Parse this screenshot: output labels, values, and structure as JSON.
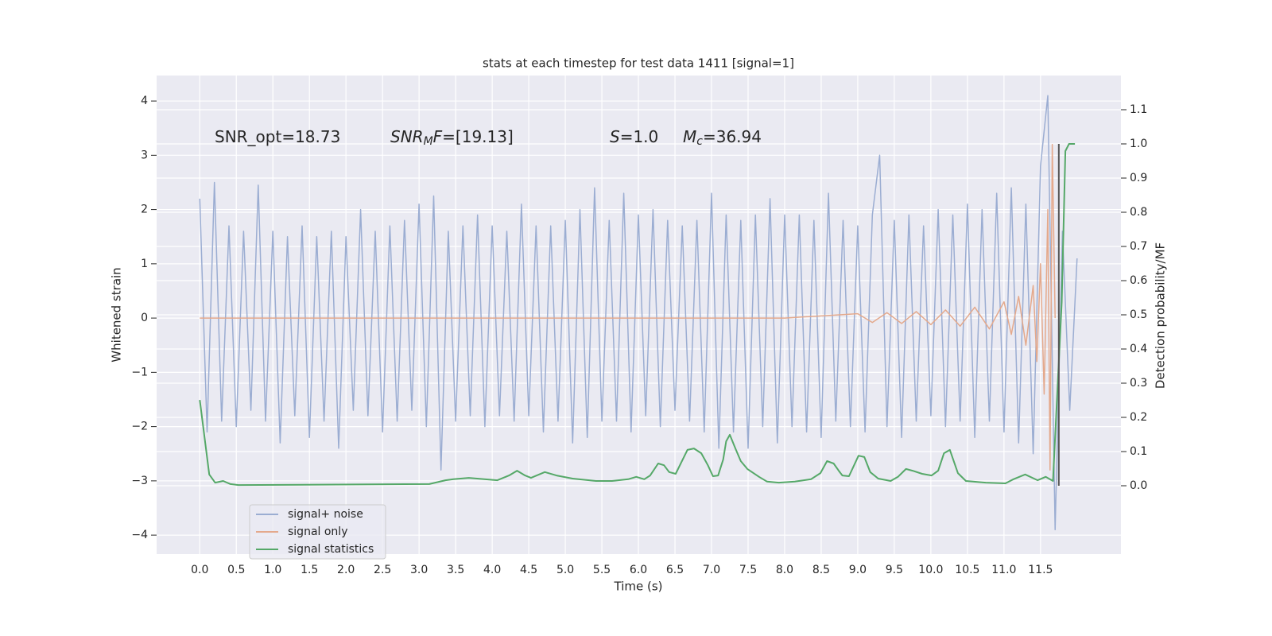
{
  "chart_data": {
    "type": "line",
    "title": "stats at each timestep for test data 1411 [signal=1]",
    "xlabel": "Time (s)",
    "ylabel": "Whitened strain",
    "y2label": "Detection probability/MF",
    "annotations": [
      {
        "parts": [
          "SNR_opt=18.73"
        ]
      },
      {
        "parts": [
          "SNR",
          "M",
          "F",
          "=[19.13]"
        ]
      },
      {
        "parts": [
          "S",
          "=1.0"
        ]
      },
      {
        "parts": [
          "M",
          "c",
          "=36.94"
        ]
      }
    ],
    "xlim": [
      -0.59,
      12.6
    ],
    "ylim": [
      -4.35,
      4.47
    ],
    "y2lim": [
      -0.2,
      1.2
    ],
    "xticks": [
      {
        "value": 0,
        "label": "0.0"
      },
      0.5,
      {
        "value": 1,
        "label": "1.0"
      },
      1.5,
      {
        "value": 2,
        "label": "2.0"
      },
      2.5,
      {
        "value": 3,
        "label": "3.0"
      },
      3.5,
      {
        "value": 4,
        "label": "4.0"
      },
      4.5,
      {
        "value": 5,
        "label": "5.0"
      },
      5.5,
      {
        "value": 6,
        "label": "6.0"
      },
      6.5,
      {
        "value": 7,
        "label": "7.0"
      },
      7.5,
      {
        "value": 8,
        "label": "8.0"
      },
      8.5,
      {
        "value": 9,
        "label": "9.0"
      },
      9.5,
      {
        "value": 10,
        "label": "10.0"
      },
      10.5,
      {
        "value": 11,
        "label": "11.0"
      },
      11.5
    ],
    "yticks": [
      {
        "value": -4,
        "label": "−4"
      },
      {
        "value": -3,
        "label": "−3"
      },
      {
        "value": -2,
        "label": "−2"
      },
      {
        "value": -1,
        "label": "−1"
      },
      0,
      1,
      2,
      3,
      4
    ],
    "y2ticks": [
      {
        "value": 0,
        "label": "0.0"
      },
      0.1,
      0.2,
      0.3,
      0.4,
      0.5,
      0.6,
      0.7,
      0.8,
      0.9,
      {
        "value": 1,
        "label": "1.0"
      },
      1.1
    ],
    "grid": true,
    "legend": "lower left",
    "series": [
      {
        "name": "signal+ noise",
        "color": "#9badd2",
        "x": [
          0.0,
          0.1,
          0.2,
          0.3,
          0.4,
          0.5,
          0.6,
          0.7,
          0.8,
          0.9,
          1.0,
          1.1,
          1.2,
          1.3,
          1.4,
          1.5,
          1.6,
          1.7,
          1.8,
          1.9,
          2.0,
          2.1,
          2.2,
          2.3,
          2.4,
          2.5,
          2.6,
          2.7,
          2.8,
          2.9,
          3.0,
          3.1,
          3.2,
          3.3,
          3.4,
          3.5,
          3.6,
          3.7,
          3.8,
          3.9,
          4.0,
          4.1,
          4.2,
          4.3,
          4.4,
          4.5,
          4.6,
          4.7,
          4.8,
          4.9,
          5.0,
          5.1,
          5.2,
          5.3,
          5.4,
          5.5,
          5.6,
          5.7,
          5.8,
          5.9,
          6.0,
          6.1,
          6.2,
          6.3,
          6.4,
          6.5,
          6.6,
          6.7,
          6.8,
          6.9,
          7.0,
          7.1,
          7.2,
          7.3,
          7.4,
          7.5,
          7.6,
          7.7,
          7.8,
          7.9,
          8.0,
          8.1,
          8.2,
          8.3,
          8.4,
          8.5,
          8.6,
          8.7,
          8.8,
          8.9,
          9.0,
          9.1,
          9.2,
          9.3,
          9.4,
          9.5,
          9.6,
          9.7,
          9.8,
          9.9,
          10.0,
          10.1,
          10.2,
          10.3,
          10.4,
          10.5,
          10.6,
          10.7,
          10.8,
          10.9,
          11.0,
          11.1,
          11.2,
          11.3,
          11.4,
          11.5,
          11.6,
          11.7,
          11.8,
          11.9,
          12.0
        ],
        "values": [
          2.2,
          -2.1,
          2.5,
          -1.9,
          1.7,
          -2.0,
          1.6,
          -1.7,
          2.45,
          -1.9,
          1.6,
          -2.3,
          1.5,
          -1.8,
          1.7,
          -2.2,
          1.5,
          -1.9,
          1.6,
          -2.4,
          1.5,
          -1.7,
          2.0,
          -1.8,
          1.6,
          -2.1,
          1.7,
          -1.9,
          1.8,
          -1.7,
          2.1,
          -2.0,
          2.25,
          -2.8,
          1.6,
          -1.9,
          1.7,
          -1.8,
          1.9,
          -2.0,
          1.7,
          -1.8,
          1.6,
          -1.9,
          2.1,
          -1.8,
          1.7,
          -2.1,
          1.7,
          -1.9,
          1.8,
          -2.3,
          2.0,
          -2.2,
          2.4,
          -1.9,
          1.8,
          -1.9,
          2.3,
          -2.1,
          1.9,
          -1.8,
          2.0,
          -2.0,
          1.8,
          -1.7,
          1.7,
          -1.9,
          1.8,
          -2.1,
          2.3,
          -2.4,
          1.9,
          -2.1,
          1.8,
          -2.4,
          1.9,
          -2.0,
          2.2,
          -2.3,
          1.9,
          -2.0,
          1.9,
          -2.1,
          1.8,
          -2.2,
          2.3,
          -1.9,
          1.8,
          -2.0,
          1.7,
          -2.1,
          1.9,
          3.0,
          -2.0,
          1.8,
          -2.2,
          1.9,
          -1.9,
          1.7,
          -1.8,
          2.0,
          -2.0,
          1.9,
          -1.9,
          2.1,
          -2.2,
          2.0,
          -1.9,
          2.3,
          -2.1,
          2.4,
          -2.3,
          2.1,
          -2.5,
          2.8,
          4.1,
          -3.9,
          1.6,
          -1.7,
          1.1
        ]
      },
      {
        "name": "signal only",
        "color": "#e4a98c",
        "x": [
          0,
          2,
          4,
          6,
          8,
          9.0,
          9.2,
          9.4,
          9.6,
          9.8,
          10.0,
          10.2,
          10.4,
          10.6,
          10.8,
          11.0,
          11.1,
          11.2,
          11.3,
          11.4,
          11.45,
          11.5,
          11.55,
          11.6,
          11.63,
          11.66,
          11.7
        ],
        "values": [
          0,
          0,
          0,
          0,
          0,
          0.08,
          -0.08,
          0.1,
          -0.1,
          0.12,
          -0.12,
          0.15,
          -0.15,
          0.2,
          -0.2,
          0.3,
          -0.3,
          0.4,
          -0.5,
          0.6,
          -0.8,
          1.0,
          -1.4,
          2.0,
          -2.8,
          3.2,
          0
        ]
      },
      {
        "name": "signal statistics",
        "color": "#55a868",
        "axis": "y2",
        "x": [
          0.0,
          0.13,
          0.21,
          0.32,
          0.42,
          0.53,
          3.14,
          3.36,
          3.47,
          3.68,
          4.07,
          4.23,
          4.34,
          4.45,
          4.53,
          4.72,
          4.88,
          5.1,
          5.42,
          5.64,
          5.86,
          5.97,
          6.08,
          6.16,
          6.27,
          6.35,
          6.42,
          6.51,
          6.67,
          6.76,
          6.86,
          6.95,
          7.02,
          7.09,
          7.16,
          7.2,
          7.25,
          7.33,
          7.4,
          7.49,
          7.65,
          7.76,
          7.92,
          8.14,
          8.36,
          8.49,
          8.58,
          8.67,
          8.74,
          8.79,
          8.88,
          9.01,
          9.09,
          9.17,
          9.28,
          9.45,
          9.55,
          9.66,
          9.75,
          9.88,
          10.01,
          10.1,
          10.18,
          10.26,
          10.37,
          10.48,
          10.75,
          11.02,
          11.13,
          11.29,
          11.46,
          11.57,
          11.67,
          11.79,
          11.84,
          11.89,
          11.97
        ],
        "values": [
          0.251,
          0.033,
          0.009,
          0.014,
          0.005,
          0.002,
          0.005,
          0.016,
          0.019,
          0.023,
          0.016,
          0.03,
          0.044,
          0.03,
          0.023,
          0.04,
          0.03,
          0.021,
          0.014,
          0.014,
          0.019,
          0.026,
          0.019,
          0.03,
          0.065,
          0.06,
          0.04,
          0.035,
          0.105,
          0.109,
          0.095,
          0.06,
          0.028,
          0.03,
          0.077,
          0.13,
          0.149,
          0.107,
          0.072,
          0.049,
          0.026,
          0.012,
          0.009,
          0.012,
          0.019,
          0.037,
          0.072,
          0.065,
          0.044,
          0.03,
          0.028,
          0.088,
          0.084,
          0.04,
          0.021,
          0.014,
          0.026,
          0.049,
          0.044,
          0.035,
          0.03,
          0.044,
          0.095,
          0.105,
          0.037,
          0.014,
          0.009,
          0.007,
          0.019,
          0.033,
          0.016,
          0.026,
          0.014,
          0.537,
          0.979,
          1.0,
          1.0
        ]
      }
    ],
    "vline": {
      "x": 11.75,
      "ymin": 0,
      "ymax": 1,
      "axis": "y2",
      "color": "#555555"
    }
  }
}
